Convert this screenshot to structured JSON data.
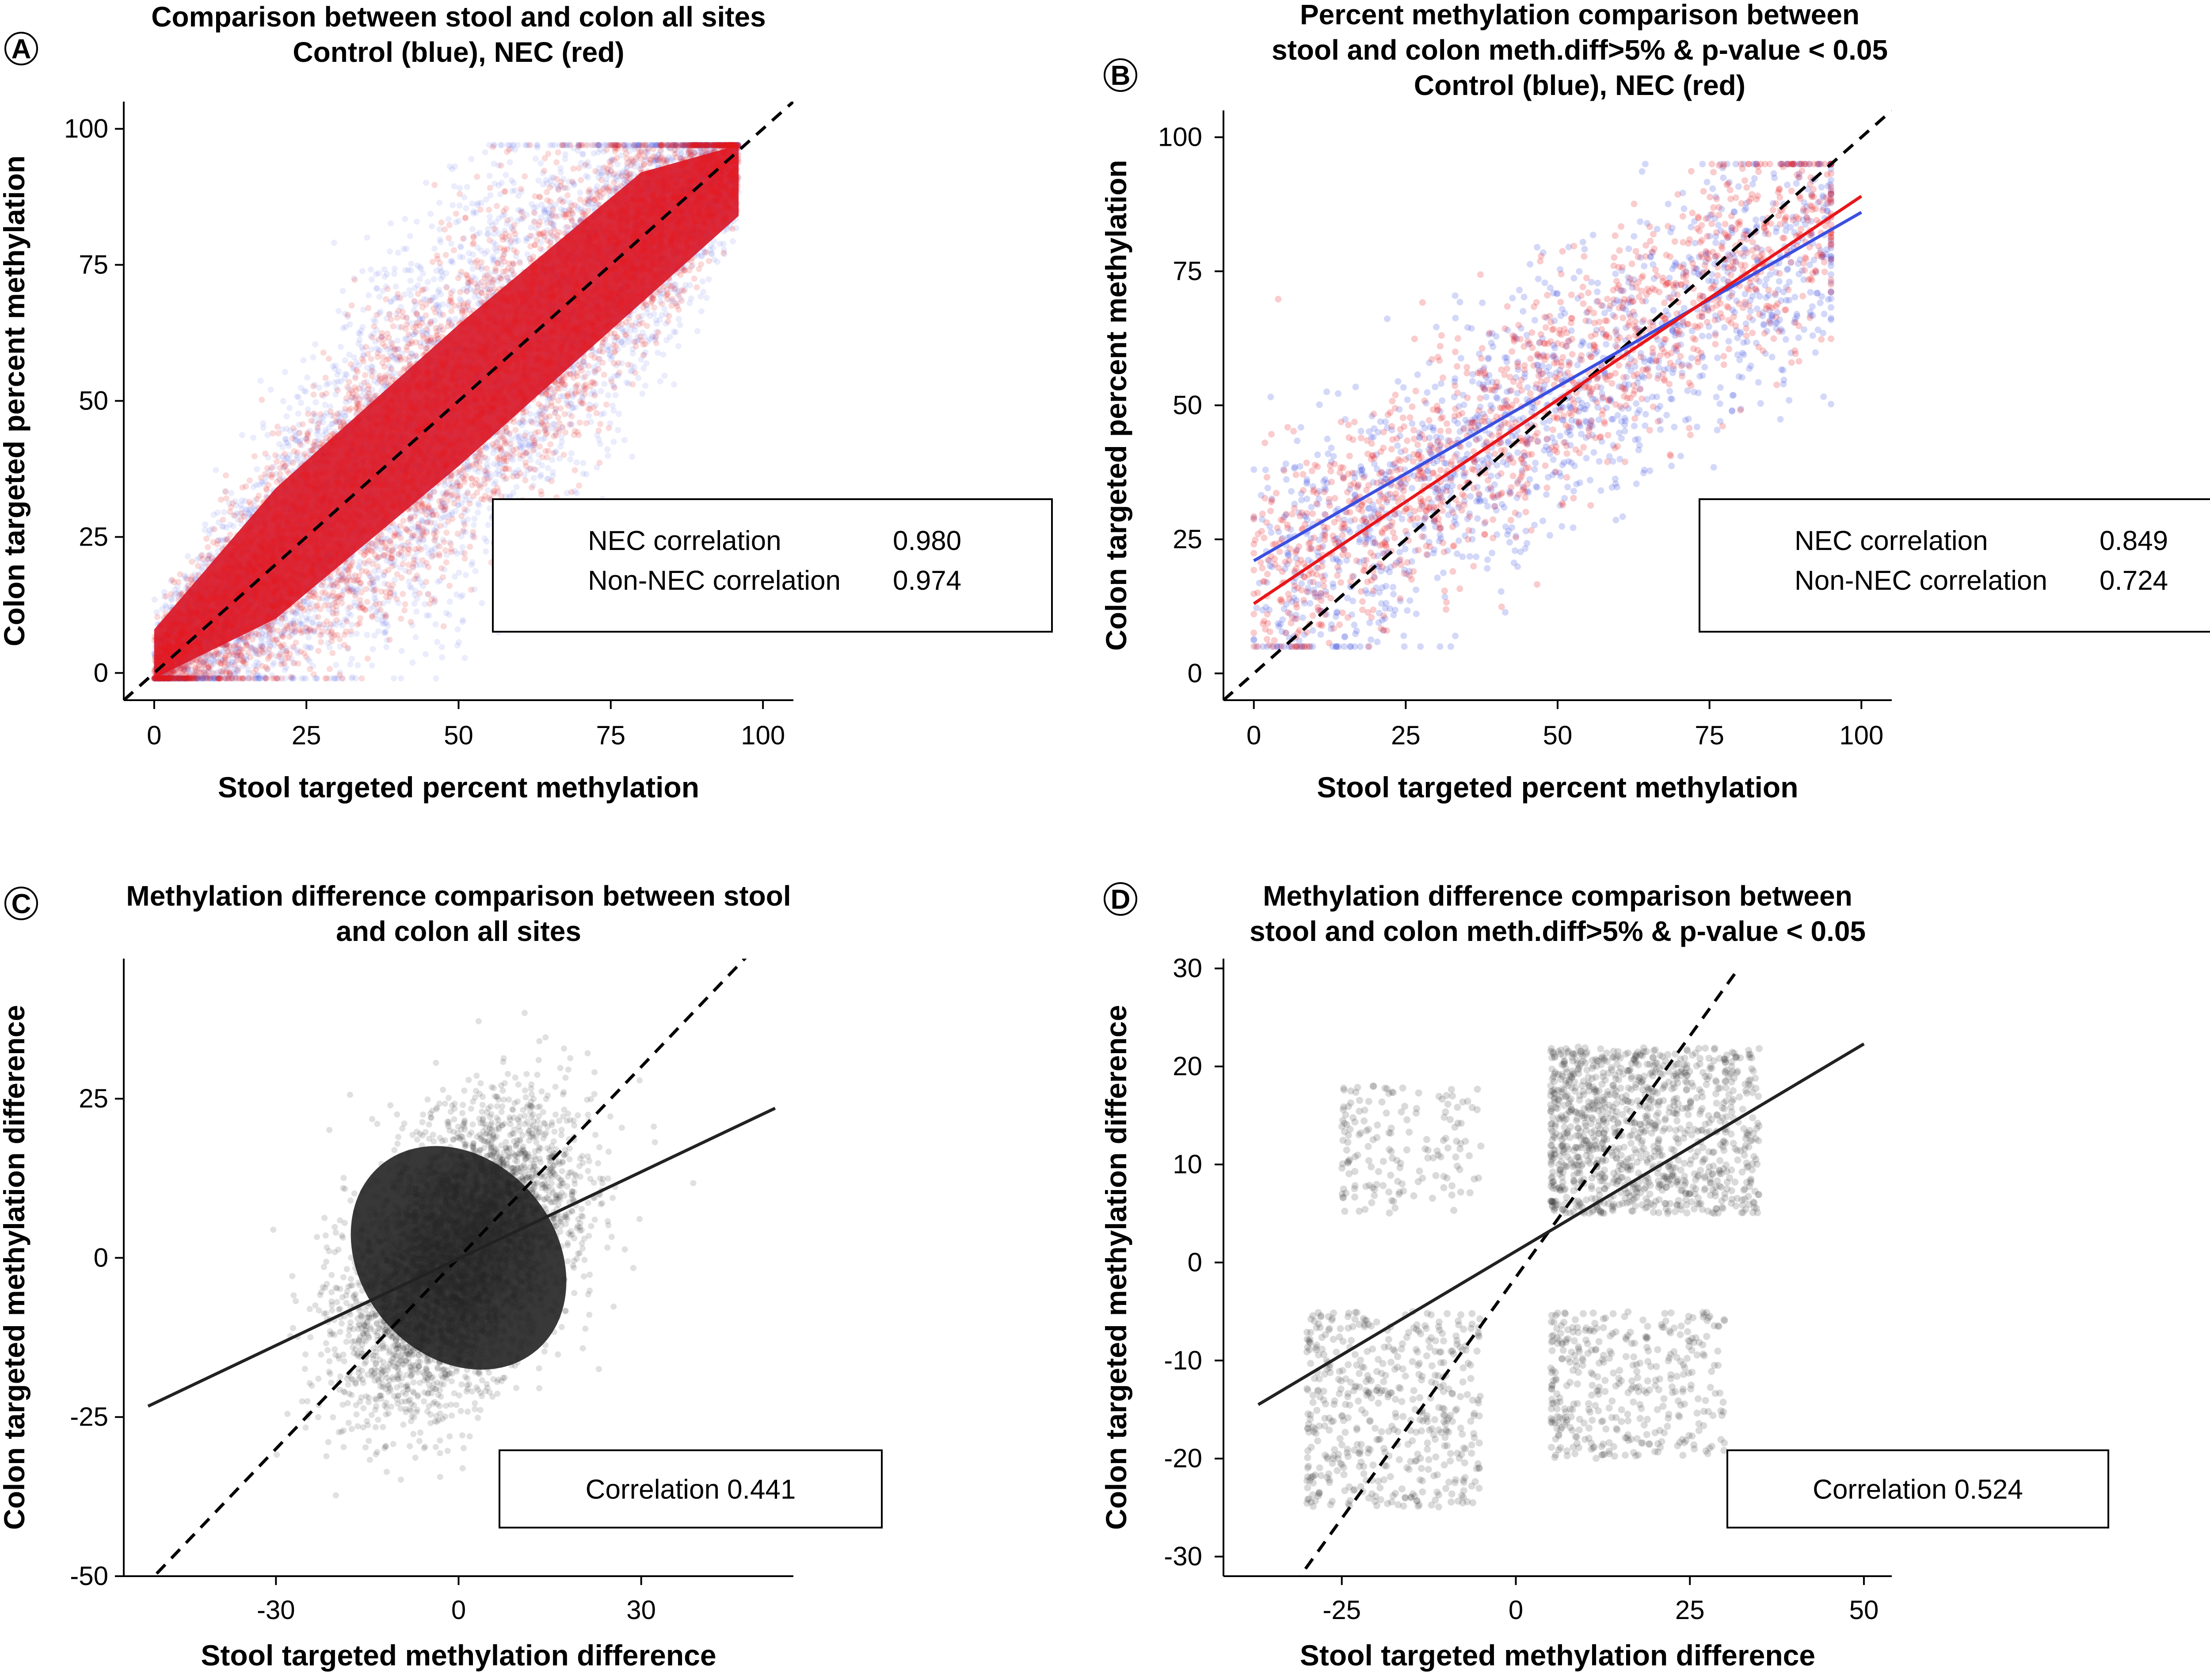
{
  "figure": {
    "panels": [
      {
        "letter": "A",
        "title": [
          "Comparison between stool and colon all sites",
          "Control (blue), NEC (red)"
        ],
        "xlabel": "Stool targeted percent methylation",
        "ylabel": "Colon targeted percent methylation",
        "stats": [
          {
            "label": "NEC correlation",
            "value": "0.980"
          },
          {
            "label": "Non-NEC correlation",
            "value": "0.974"
          }
        ]
      },
      {
        "letter": "B",
        "title": [
          "Percent methylation comparison between",
          "stool and colon meth.diff>5% & p-value < 0.05",
          "Control (blue), NEC (red)"
        ],
        "xlabel": "Stool targeted percent methylation",
        "ylabel": "Colon targeted percent methylation",
        "stats": [
          {
            "label": "NEC correlation",
            "value": "0.849"
          },
          {
            "label": "Non-NEC correlation",
            "value": "0.724"
          }
        ]
      },
      {
        "letter": "C",
        "title": [
          "Methylation difference comparison between stool",
          "and colon all sites"
        ],
        "xlabel": "Stool targeted methylation difference",
        "ylabel": "Colon targeted methylation difference",
        "stats": [
          {
            "label": "Correlation",
            "value": "0.441"
          }
        ]
      },
      {
        "letter": "D",
        "title": [
          "Methylation difference comparison between",
          "stool and colon meth.diff>5% & p-value < 0.05"
        ],
        "xlabel": "Stool targeted methylation difference",
        "ylabel": "Colon targeted methylation difference",
        "stats": [
          {
            "label": "Correlation",
            "value": "0.524"
          }
        ]
      }
    ]
  },
  "chart_data": [
    {
      "type": "scatter",
      "panel": "A",
      "xlim": [
        -5,
        105
      ],
      "ylim": [
        -5,
        105
      ],
      "x_ticks": [
        0,
        25,
        50,
        75,
        100
      ],
      "y_ticks": [
        0,
        25,
        50,
        75,
        100
      ],
      "series": [
        {
          "name": "Control",
          "color": "#3b4fe0",
          "cloud": {
            "range": [
              0,
              96
            ],
            "spread": 14
          }
        },
        {
          "name": "NEC",
          "color": "#e8161b",
          "cloud": {
            "range": [
              0,
              96
            ],
            "spread": 11
          }
        }
      ],
      "reference_line": {
        "style": "dashed",
        "color": "#000000",
        "from": [
          -5,
          -5
        ],
        "to": [
          105,
          105
        ]
      },
      "fit_lines": [],
      "legend": "bottom-right",
      "grid": false
    },
    {
      "type": "scatter",
      "panel": "B",
      "xlim": [
        -5,
        105
      ],
      "ylim": [
        -5,
        105
      ],
      "x_ticks": [
        0,
        25,
        50,
        75,
        100
      ],
      "y_ticks": [
        0,
        25,
        50,
        75,
        100
      ],
      "series": [
        {
          "name": "Control",
          "color": "#3b4fe0",
          "cloud": {
            "range": [
              2,
              96
            ],
            "spread": 12
          }
        },
        {
          "name": "NEC",
          "color": "#e8161b",
          "cloud": {
            "range": [
              2,
              96
            ],
            "spread": 10
          }
        }
      ],
      "reference_line": {
        "style": "dashed",
        "color": "#000000",
        "from": [
          -5,
          -5
        ],
        "to": [
          105,
          105
        ]
      },
      "fit_lines": [
        {
          "name": "Control",
          "color": "#3b4fe0",
          "x": [
            0,
            100
          ],
          "y": [
            21,
            86
          ]
        },
        {
          "name": "NEC",
          "color": "#e8161b",
          "x": [
            0,
            100
          ],
          "y": [
            13,
            89
          ]
        }
      ],
      "legend": "bottom-right",
      "grid": false
    },
    {
      "type": "scatter",
      "panel": "C",
      "xlim": [
        -55,
        55
      ],
      "ylim": [
        -50,
        47
      ],
      "x_ticks": [
        -30,
        0,
        30
      ],
      "y_ticks": [
        -50,
        -25,
        0,
        25
      ],
      "series": [
        {
          "name": "sites",
          "color": "#222222",
          "cloud": {
            "center": [
              0,
              0
            ],
            "sd": [
              9,
              11
            ],
            "corr": 0.44
          }
        }
      ],
      "reference_line": {
        "style": "dashed",
        "color": "#000000",
        "from": [
          -52,
          -52
        ],
        "to": [
          48,
          48
        ]
      },
      "fit_lines": [
        {
          "name": "fit",
          "color": "#222222",
          "x": [
            -51,
            52
          ],
          "y": [
            -23.3,
            23.5
          ]
        }
      ],
      "legend": "bottom-right",
      "grid": false
    },
    {
      "type": "scatter",
      "panel": "D",
      "xlim": [
        -42,
        54
      ],
      "ylim": [
        -32,
        31
      ],
      "x_ticks": [
        -25,
        0,
        25,
        50
      ],
      "y_ticks": [
        -30,
        -20,
        -10,
        0,
        10,
        20,
        30
      ],
      "series": [
        {
          "name": "sites",
          "color": "#333333",
          "quadrants": [
            {
              "x": [
                5,
                35
              ],
              "y": [
                5,
                22
              ],
              "n": 1100
            },
            {
              "x": [
                -30,
                -5
              ],
              "y": [
                -25,
                -5
              ],
              "n": 500
            },
            {
              "x": [
                5,
                30
              ],
              "y": [
                -20,
                -5
              ],
              "n": 380
            },
            {
              "x": [
                -25,
                -5
              ],
              "y": [
                5,
                18
              ],
              "n": 160
            }
          ]
        }
      ],
      "reference_line": {
        "style": "dashed",
        "color": "#000000",
        "from": [
          -32,
          -33
        ],
        "to": [
          32,
          30
        ]
      },
      "fit_lines": [
        {
          "name": "fit",
          "color": "#222222",
          "x": [
            -37,
            50
          ],
          "y": [
            -14.5,
            22.3
          ]
        }
      ],
      "legend": "bottom-right",
      "grid": false
    }
  ]
}
